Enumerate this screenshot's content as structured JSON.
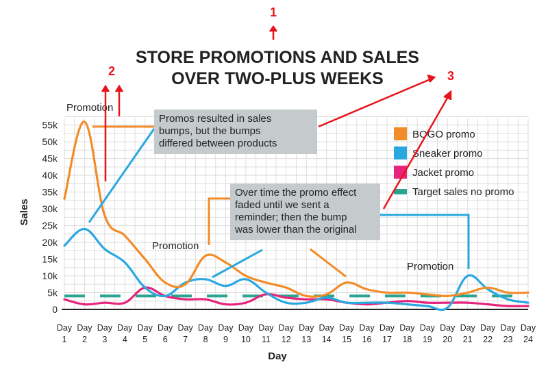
{
  "chart_data": {
    "type": "line",
    "title_lines": [
      "STORE PROMOTIONS AND SALES",
      "OVER TWO-PLUS WEEKS"
    ],
    "xlabel": "Day",
    "ylabel": "Sales",
    "categories": [
      "Day 1",
      "Day 2",
      "Day 3",
      "Day 4",
      "Day 5",
      "Day 6",
      "Day 7",
      "Day 8",
      "Day 9",
      "Day 10",
      "Day 11",
      "Day 12",
      "Day 13",
      "Day 14",
      "Day 15",
      "Day 16",
      "Day 17",
      "Day 18",
      "Day 19",
      "Day 20",
      "Day 21",
      "Day 22",
      "Day 23",
      "Day 24"
    ],
    "yticks": [
      0,
      5000,
      10000,
      15000,
      20000,
      25000,
      30000,
      35000,
      40000,
      45000,
      50000,
      55000
    ],
    "ytick_labels": [
      "0",
      "5k",
      "10k",
      "15k",
      "20k",
      "25k",
      "30k",
      "35k",
      "40k",
      "45k",
      "50k",
      "55k"
    ],
    "ylim": [
      0,
      58000
    ],
    "grid": true,
    "legend_position": "right",
    "series": [
      {
        "name": "BOGO promo",
        "color": "#F28C28",
        "style": "solid",
        "values": [
          33000,
          56000,
          28000,
          22000,
          15000,
          8000,
          7500,
          16000,
          14000,
          10000,
          8000,
          6500,
          4000,
          4500,
          8000,
          6000,
          5000,
          5000,
          4500,
          4000,
          5000,
          6500,
          5000,
          5000
        ]
      },
      {
        "name": "Sneaker promo",
        "color": "#29A8E0",
        "style": "solid",
        "values": [
          19000,
          24000,
          18000,
          14000,
          6500,
          4000,
          8000,
          9000,
          7000,
          9000,
          5000,
          2000,
          2000,
          3500,
          2000,
          2000,
          2000,
          1500,
          1000,
          500,
          10000,
          6000,
          3000,
          2000
        ]
      },
      {
        "name": "Jacket promo",
        "color": "#E6247C",
        "style": "solid",
        "values": [
          3000,
          1500,
          2000,
          2000,
          6500,
          4000,
          3000,
          3000,
          1500,
          2000,
          4500,
          3500,
          3000,
          3000,
          2000,
          1500,
          2000,
          2500,
          2000,
          2000,
          2000,
          1500,
          1000,
          1000
        ]
      },
      {
        "name": "Target sales no promo",
        "color": "#2BA592",
        "style": "dashed",
        "values": [
          4000,
          4000,
          4000,
          4000,
          4000,
          4000,
          4000,
          4000,
          4000,
          4000,
          4000,
          4000,
          4000,
          4000,
          4000,
          4000,
          4000,
          4000,
          4000,
          4000,
          4000,
          4000,
          4000,
          4000
        ]
      }
    ],
    "annotations": {
      "promotion_label": "Promotion",
      "callout_1": [
        "Promos resulted in sales",
        "bumps, but the bumps",
        "differed between products"
      ],
      "callout_2": [
        "Over time the promo effect",
        "faded until we sent a",
        "reminder; then the bump",
        "was lower than the original"
      ],
      "markers": [
        "1",
        "2",
        "3"
      ]
    },
    "colors": {
      "marker_red": "#E8141B",
      "callout_bg": "#C5CACD",
      "grid": "#DDDDDD"
    }
  }
}
